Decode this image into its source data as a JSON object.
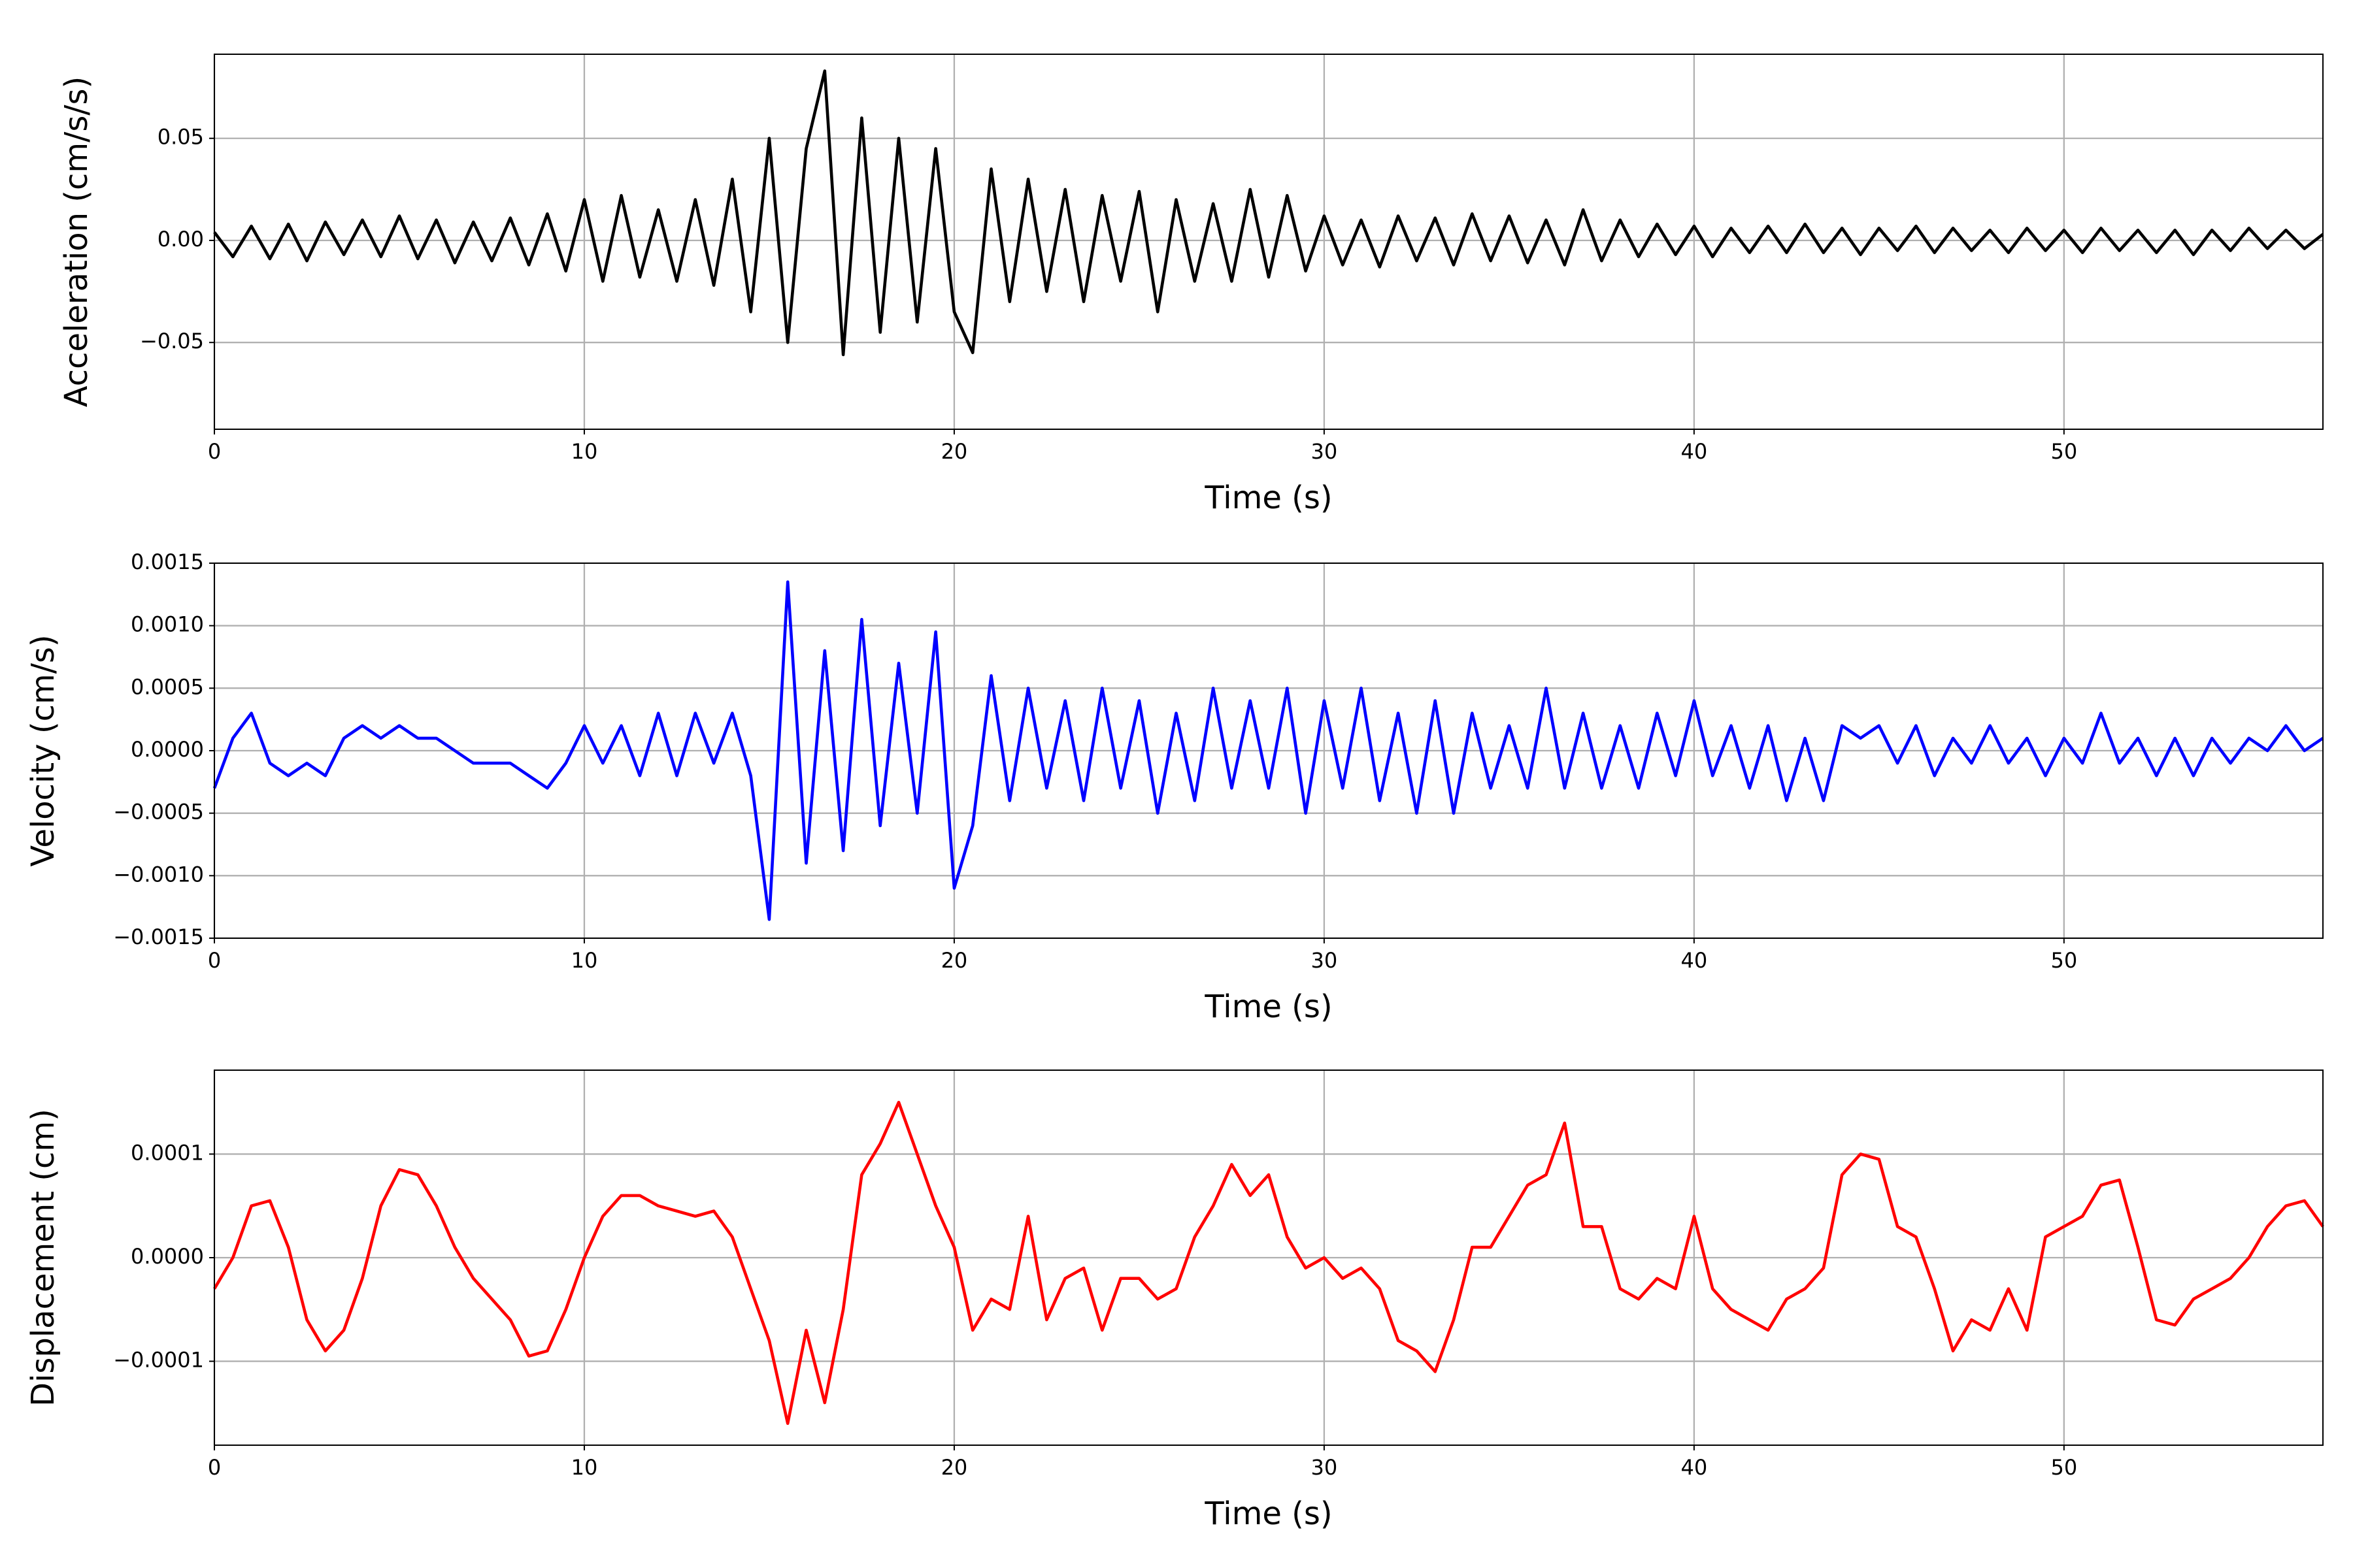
{
  "chart_data": [
    {
      "type": "line",
      "xlabel": "Time (s)",
      "ylabel": "Acceleration (cm/s/s)",
      "color": "#000000",
      "grid": true,
      "xlim": [
        0,
        57
      ],
      "xticks": [
        0,
        10,
        20,
        30,
        40,
        50
      ],
      "ylim": [
        -0.0925,
        0.0912
      ],
      "yticks": [
        {
          "value": -0.05,
          "label": "−0.05"
        },
        {
          "value": 0,
          "label": "0.00"
        },
        {
          "value": 0.05,
          "label": "0.05"
        }
      ],
      "x": [
        0,
        0.5,
        1,
        1.5,
        2,
        2.5,
        3,
        3.5,
        4,
        4.5,
        5,
        5.5,
        6,
        6.5,
        7,
        7.5,
        8,
        8.5,
        9,
        9.5,
        10,
        10.5,
        11,
        11.5,
        12,
        12.5,
        13,
        13.5,
        14,
        14.5,
        15,
        15.5,
        16,
        16.5,
        17,
        17.5,
        18,
        18.5,
        19,
        19.5,
        20,
        20.5,
        21,
        21.5,
        22,
        22.5,
        23,
        23.5,
        24,
        24.5,
        25,
        25.5,
        26,
        26.5,
        27,
        27.5,
        28,
        28.5,
        29,
        29.5,
        30,
        30.5,
        31,
        31.5,
        32,
        32.5,
        33,
        33.5,
        34,
        34.5,
        35,
        35.5,
        36,
        36.5,
        37,
        37.5,
        38,
        38.5,
        39,
        39.5,
        40,
        40.5,
        41,
        41.5,
        42,
        42.5,
        43,
        43.5,
        44,
        44.5,
        45,
        45.5,
        46,
        46.5,
        47,
        47.5,
        48,
        48.5,
        49,
        49.5,
        50,
        50.5,
        51,
        51.5,
        52,
        52.5,
        53,
        53.5,
        54,
        54.5,
        55,
        55.5,
        56,
        56.5,
        57
      ],
      "values": [
        0.004,
        -0.008,
        0.007,
        -0.009,
        0.008,
        -0.01,
        0.009,
        -0.007,
        0.01,
        -0.008,
        0.012,
        -0.009,
        0.01,
        -0.011,
        0.009,
        -0.01,
        0.011,
        -0.012,
        0.013,
        -0.015,
        0.02,
        -0.02,
        0.022,
        -0.018,
        0.015,
        -0.02,
        0.02,
        -0.022,
        0.03,
        -0.035,
        0.05,
        -0.05,
        0.045,
        0.083,
        -0.056,
        0.06,
        -0.045,
        0.05,
        -0.04,
        0.045,
        -0.035,
        -0.055,
        0.035,
        -0.03,
        0.03,
        -0.025,
        0.025,
        -0.03,
        0.022,
        -0.02,
        0.024,
        -0.035,
        0.02,
        -0.02,
        0.018,
        -0.02,
        0.025,
        -0.018,
        0.022,
        -0.015,
        0.012,
        -0.012,
        0.01,
        -0.013,
        0.012,
        -0.01,
        0.011,
        -0.012,
        0.013,
        -0.01,
        0.012,
        -0.011,
        0.01,
        -0.012,
        0.015,
        -0.01,
        0.01,
        -0.008,
        0.008,
        -0.007,
        0.007,
        -0.008,
        0.006,
        -0.006,
        0.007,
        -0.006,
        0.008,
        -0.006,
        0.006,
        -0.007,
        0.006,
        -0.005,
        0.007,
        -0.006,
        0.006,
        -0.005,
        0.005,
        -0.006,
        0.006,
        -0.005,
        0.005,
        -0.006,
        0.006,
        -0.005,
        0.005,
        -0.006,
        0.005,
        -0.007,
        0.005,
        -0.005,
        0.006,
        -0.004,
        0.005,
        -0.004,
        0.003
      ]
    },
    {
      "type": "line",
      "xlabel": "Time (s)",
      "ylabel": "Velocity (cm/s)",
      "color": "#0000ff",
      "grid": true,
      "xlim": [
        0,
        57
      ],
      "xticks": [
        0,
        10,
        20,
        30,
        40,
        50
      ],
      "ylim": [
        -0.0015,
        0.0015
      ],
      "yticks": [
        {
          "value": -0.0015,
          "label": "−0.0015"
        },
        {
          "value": -0.001,
          "label": "−0.0010"
        },
        {
          "value": -0.0005,
          "label": "−0.0005"
        },
        {
          "value": 0,
          "label": "0.0000"
        },
        {
          "value": 0.0005,
          "label": "0.0005"
        },
        {
          "value": 0.001,
          "label": "0.0010"
        },
        {
          "value": 0.0015,
          "label": "0.0015"
        }
      ],
      "x": [
        0,
        0.5,
        1,
        1.5,
        2,
        2.5,
        3,
        3.5,
        4,
        4.5,
        5,
        5.5,
        6,
        6.5,
        7,
        7.5,
        8,
        8.5,
        9,
        9.5,
        10,
        10.5,
        11,
        11.5,
        12,
        12.5,
        13,
        13.5,
        14,
        14.5,
        15,
        15.5,
        16,
        16.5,
        17,
        17.5,
        18,
        18.5,
        19,
        19.5,
        20,
        20.5,
        21,
        21.5,
        22,
        22.5,
        23,
        23.5,
        24,
        24.5,
        25,
        25.5,
        26,
        26.5,
        27,
        27.5,
        28,
        28.5,
        29,
        29.5,
        30,
        30.5,
        31,
        31.5,
        32,
        32.5,
        33,
        33.5,
        34,
        34.5,
        35,
        35.5,
        36,
        36.5,
        37,
        37.5,
        38,
        38.5,
        39,
        39.5,
        40,
        40.5,
        41,
        41.5,
        42,
        42.5,
        43,
        43.5,
        44,
        44.5,
        45,
        45.5,
        46,
        46.5,
        47,
        47.5,
        48,
        48.5,
        49,
        49.5,
        50,
        50.5,
        51,
        51.5,
        52,
        52.5,
        53,
        53.5,
        54,
        54.5,
        55,
        55.5,
        56,
        56.5,
        57
      ],
      "values": [
        -0.0003,
        0.0001,
        0.0003,
        -0.0001,
        -0.0002,
        -0.0001,
        -0.0002,
        0.0001,
        0.0002,
        0.0001,
        0.0002,
        0.0001,
        0.0001,
        0,
        -0.0001,
        -0.0001,
        -0.0001,
        -0.0002,
        -0.0003,
        -0.0001,
        0.0002,
        -0.0001,
        0.0002,
        -0.0002,
        0.0003,
        -0.0002,
        0.0003,
        -0.0001,
        0.0003,
        -0.0002,
        -0.00135,
        0.00135,
        -0.0009,
        0.0008,
        -0.0008,
        0.00105,
        -0.0006,
        0.0007,
        -0.0005,
        0.00095,
        -0.0011,
        -0.0006,
        0.0006,
        -0.0004,
        0.0005,
        -0.0003,
        0.0004,
        -0.0004,
        0.0005,
        -0.0003,
        0.0004,
        -0.0005,
        0.0003,
        -0.0004,
        0.0005,
        -0.0003,
        0.0004,
        -0.0003,
        0.0005,
        -0.0005,
        0.0004,
        -0.0003,
        0.0005,
        -0.0004,
        0.0003,
        -0.0005,
        0.0004,
        -0.0005,
        0.0003,
        -0.0003,
        0.0002,
        -0.0003,
        0.0005,
        -0.0003,
        0.0003,
        -0.0003,
        0.0002,
        -0.0003,
        0.0003,
        -0.0002,
        0.0004,
        -0.0002,
        0.0002,
        -0.0003,
        0.0002,
        -0.0004,
        0.0001,
        -0.0004,
        0.0002,
        0.0001,
        0.0002,
        -0.0001,
        0.0002,
        -0.0002,
        0.0001,
        -0.0001,
        0.0002,
        -0.0001,
        0.0001,
        -0.0002,
        0.0001,
        -0.0001,
        0.0003,
        -0.0001,
        0.0001,
        -0.0002,
        0.0001,
        -0.0002,
        0.0001,
        -0.0001,
        0.0001,
        0,
        0.0002,
        0,
        0.0001
      ]
    },
    {
      "type": "line",
      "xlabel": "Time (s)",
      "ylabel": "Displacement (cm)",
      "color": "#ff0000",
      "grid": true,
      "xlim": [
        0,
        57
      ],
      "xticks": [
        0,
        10,
        20,
        30,
        40,
        50
      ],
      "ylim": [
        -0.000181,
        0.000181
      ],
      "yticks": [
        {
          "value": -0.0001,
          "label": "−0.0001"
        },
        {
          "value": 0,
          "label": "0.0000"
        },
        {
          "value": 0.0001,
          "label": "0.0001"
        }
      ],
      "x": [
        0,
        0.5,
        1,
        1.5,
        2,
        2.5,
        3,
        3.5,
        4,
        4.5,
        5,
        5.5,
        6,
        6.5,
        7,
        7.5,
        8,
        8.5,
        9,
        9.5,
        10,
        10.5,
        11,
        11.5,
        12,
        12.5,
        13,
        13.5,
        14,
        14.5,
        15,
        15.5,
        16,
        16.5,
        17,
        17.5,
        18,
        18.5,
        19,
        19.5,
        20,
        20.5,
        21,
        21.5,
        22,
        22.5,
        23,
        23.5,
        24,
        24.5,
        25,
        25.5,
        26,
        26.5,
        27,
        27.5,
        28,
        28.5,
        29,
        29.5,
        30,
        30.5,
        31,
        31.5,
        32,
        32.5,
        33,
        33.5,
        34,
        34.5,
        35,
        35.5,
        36,
        36.5,
        37,
        37.5,
        38,
        38.5,
        39,
        39.5,
        40,
        40.5,
        41,
        41.5,
        42,
        42.5,
        43,
        43.5,
        44,
        44.5,
        45,
        45.5,
        46,
        46.5,
        47,
        47.5,
        48,
        48.5,
        49,
        49.5,
        50,
        50.5,
        51,
        51.5,
        52,
        52.5,
        53,
        53.5,
        54,
        54.5,
        55,
        55.5,
        56,
        56.5,
        57
      ],
      "values": [
        -3e-05,
        0,
        5e-05,
        5.5e-05,
        1e-05,
        -6e-05,
        -9e-05,
        -7e-05,
        -2e-05,
        5e-05,
        8.5e-05,
        8e-05,
        5e-05,
        1e-05,
        -2e-05,
        -4e-05,
        -6e-05,
        -9.5e-05,
        -9e-05,
        -5e-05,
        0,
        4e-05,
        6e-05,
        6e-05,
        5e-05,
        4.5e-05,
        4e-05,
        4.5e-05,
        2e-05,
        -3e-05,
        -8e-05,
        -0.00016,
        -7e-05,
        -0.00014,
        -5e-05,
        8e-05,
        0.00011,
        0.00015,
        0.0001,
        5e-05,
        1e-05,
        -7e-05,
        -4e-05,
        -5e-05,
        4e-05,
        -6e-05,
        -2e-05,
        -1e-05,
        -7e-05,
        -2e-05,
        -2e-05,
        -4e-05,
        -3e-05,
        2e-05,
        5e-05,
        9e-05,
        6e-05,
        8e-05,
        2e-05,
        -1e-05,
        0,
        -2e-05,
        -1e-05,
        -3e-05,
        -8e-05,
        -9e-05,
        -0.00011,
        -6e-05,
        1e-05,
        1e-05,
        4e-05,
        7e-05,
        8e-05,
        0.00013,
        3e-05,
        3e-05,
        -3e-05,
        -4e-05,
        -2e-05,
        -3e-05,
        4e-05,
        -3e-05,
        -5e-05,
        -6e-05,
        -7e-05,
        -4e-05,
        -3e-05,
        -1e-05,
        8e-05,
        0.0001,
        9.5e-05,
        3e-05,
        2e-05,
        -3e-05,
        -9e-05,
        -6e-05,
        -7e-05,
        -3e-05,
        -7e-05,
        2e-05,
        3e-05,
        4e-05,
        7e-05,
        7.5e-05,
        1e-05,
        -6e-05,
        -6.5e-05,
        -4e-05,
        -3e-05,
        -2e-05,
        0,
        3e-05,
        5e-05,
        5.5e-05,
        3e-05
      ]
    }
  ]
}
